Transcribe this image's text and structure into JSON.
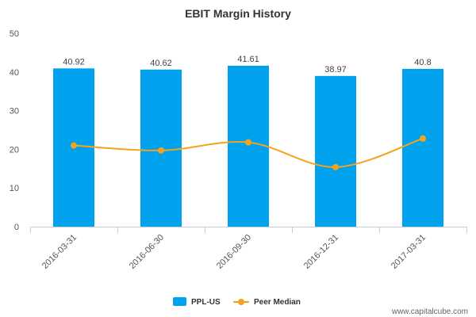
{
  "chart_data": {
    "type": "bar",
    "title": "EBIT Margin History",
    "categories": [
      "2016-03-31",
      "2016-06-30",
      "2016-09-30",
      "2016-12-31",
      "2017-03-31"
    ],
    "series": [
      {
        "name": "PPL-US",
        "type": "bar",
        "color": "#00a2ed",
        "values": [
          40.92,
          40.62,
          41.61,
          38.97,
          40.8
        ],
        "labels": [
          "40.92",
          "40.62",
          "41.61",
          "38.97",
          "40.8"
        ]
      },
      {
        "name": "Peer Median",
        "type": "line",
        "color": "#f7a21b",
        "values": [
          21.0,
          19.7,
          21.8,
          15.4,
          22.8
        ]
      }
    ],
    "ylim": [
      0,
      50
    ],
    "yticks": [
      "0",
      "10",
      "20",
      "30",
      "40",
      "50"
    ],
    "grid": false,
    "legend_position": "bottom"
  },
  "credit": "www.capitalcube.com"
}
